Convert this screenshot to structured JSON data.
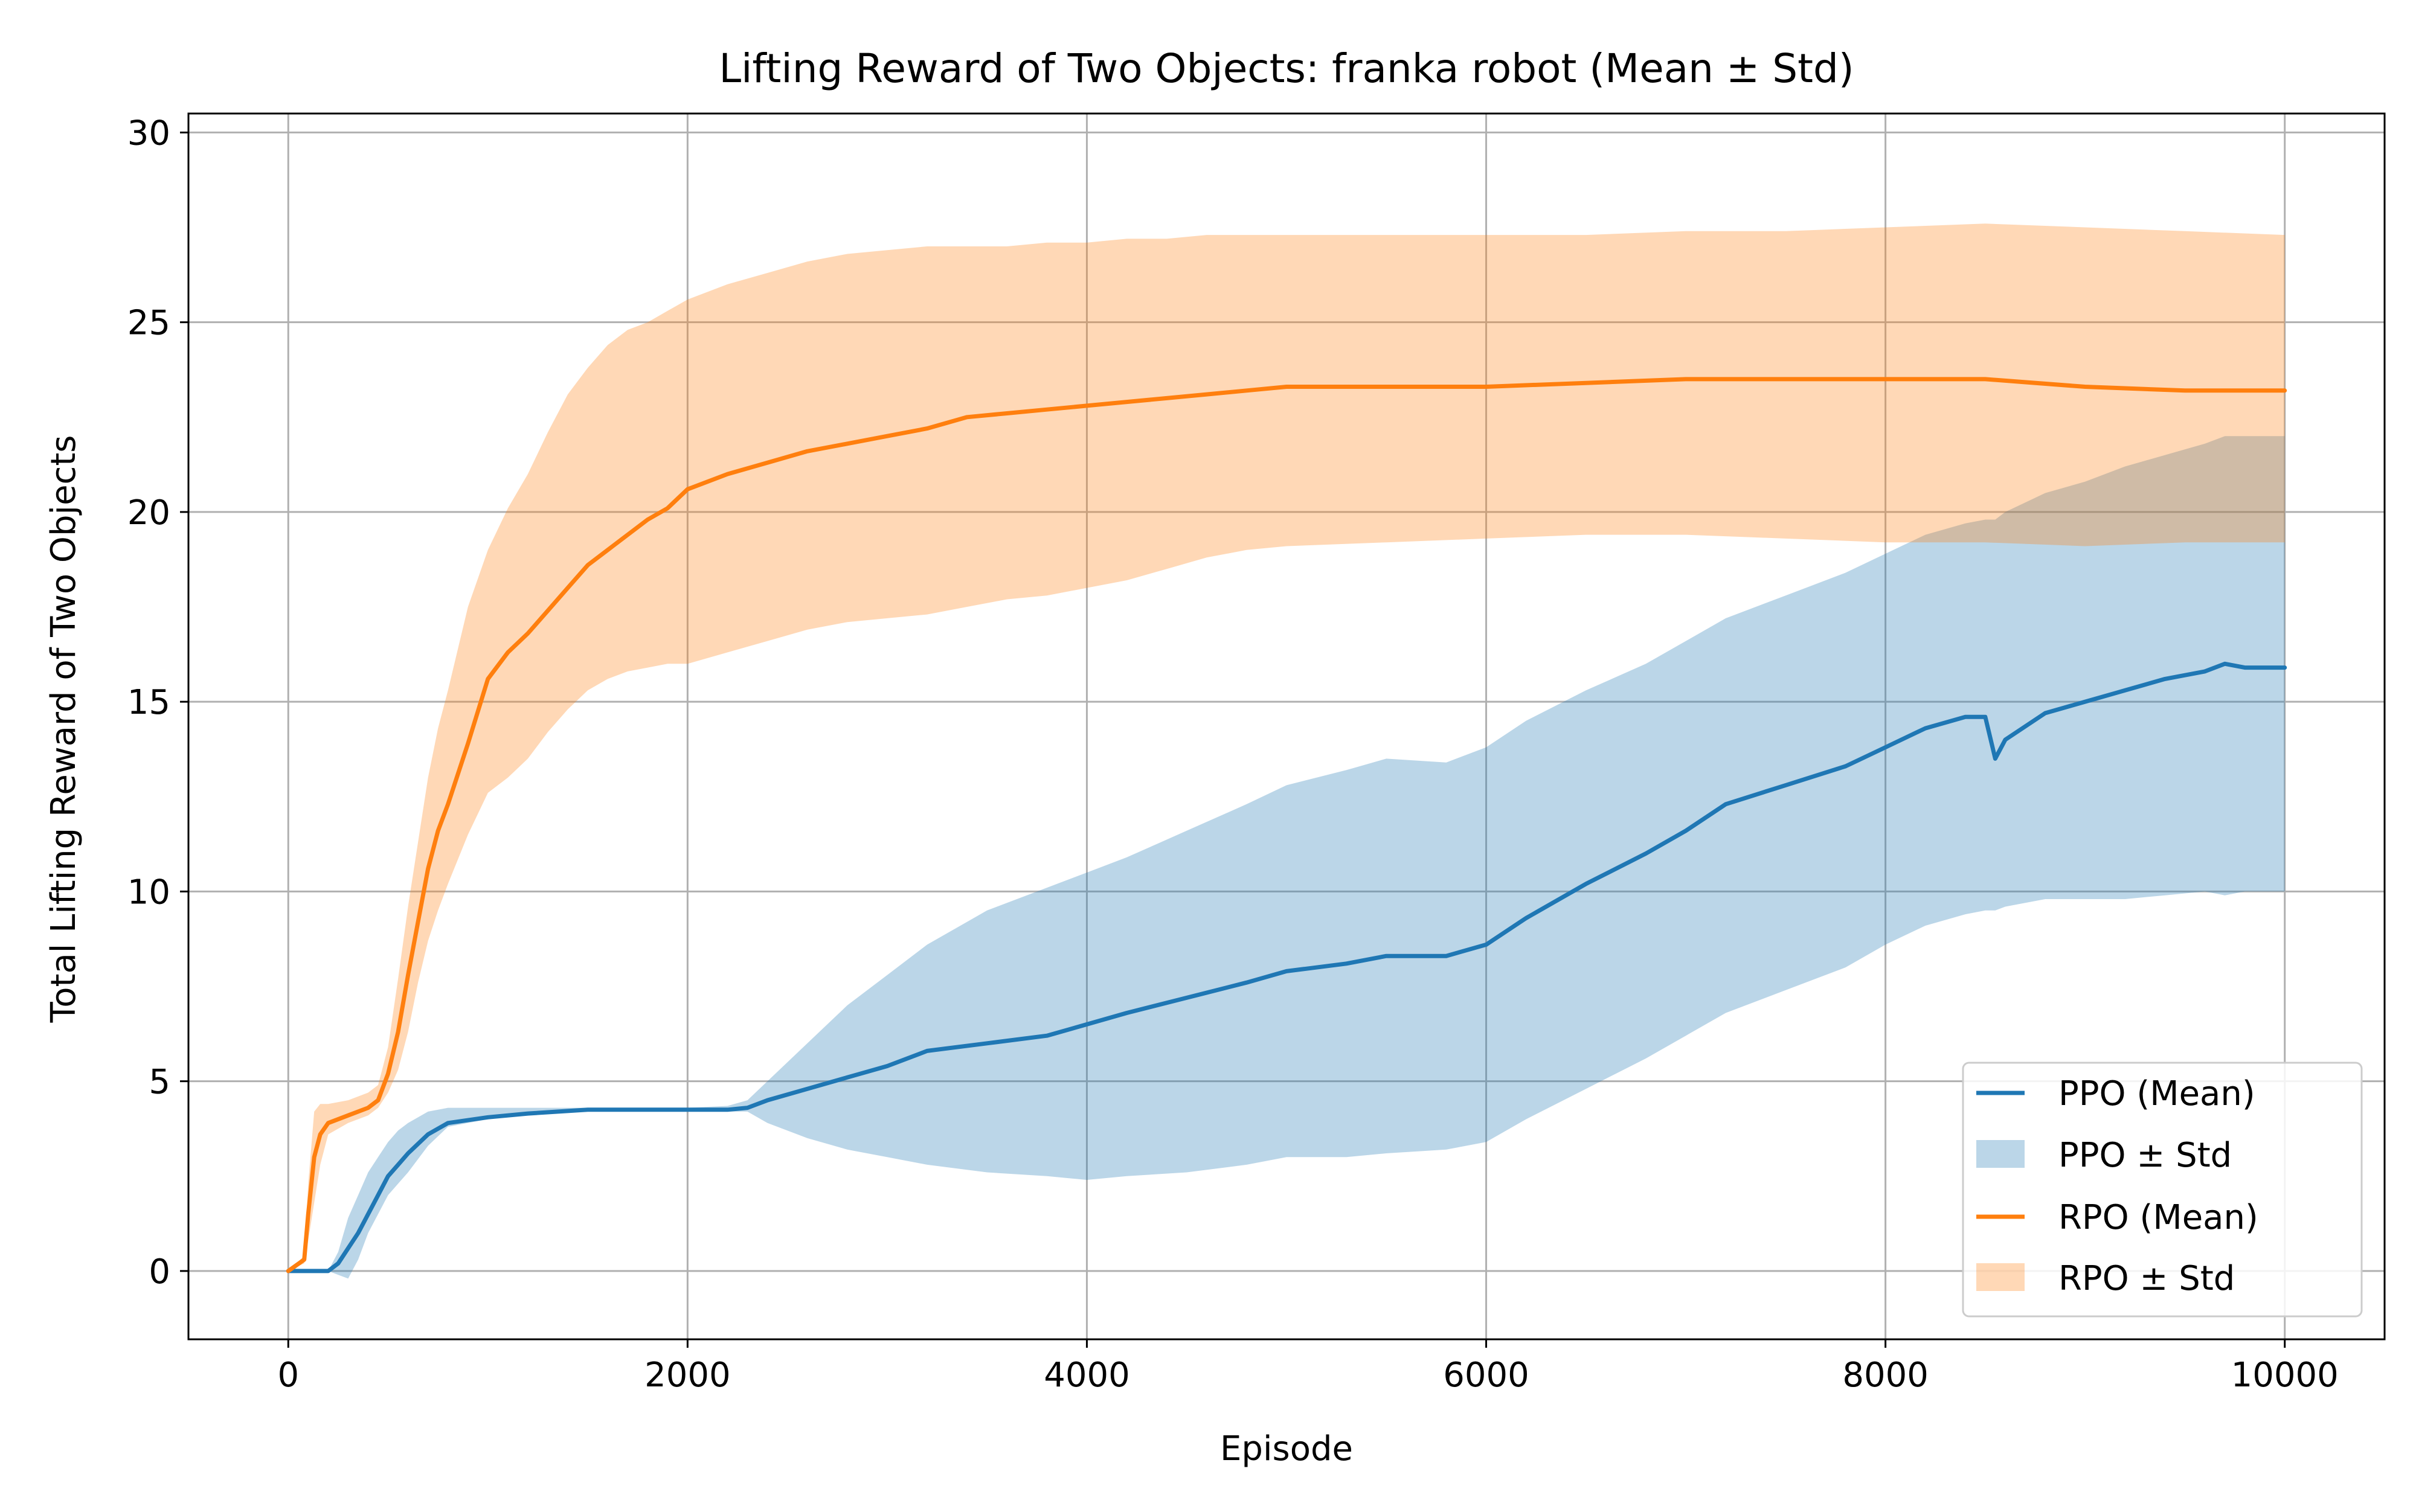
{
  "chart_data": {
    "type": "line",
    "title": "Lifting Reward of Two Objects: franka robot (Mean ± Std)",
    "xlabel": "Episode",
    "ylabel": "Total Lifting Reward of Two Objects",
    "xlim": [
      -500,
      10500
    ],
    "ylim": [
      -1.8,
      30.5
    ],
    "xticks": [
      0,
      2000,
      4000,
      6000,
      8000,
      10000
    ],
    "yticks": [
      0,
      5,
      10,
      15,
      20,
      25,
      30
    ],
    "grid": true,
    "legend_position": "lower-right",
    "series": [
      {
        "name": "PPO (Mean)",
        "band_name": "PPO ± Std",
        "color": "#1f77b4",
        "band_color": "#1f77b4",
        "x": [
          0,
          100,
          200,
          250,
          300,
          350,
          400,
          450,
          500,
          550,
          600,
          700,
          800,
          1000,
          1200,
          1500,
          1800,
          2000,
          2200,
          2300,
          2400,
          2600,
          2800,
          3000,
          3200,
          3500,
          3800,
          4000,
          4200,
          4500,
          4800,
          5000,
          5300,
          5500,
          5800,
          6000,
          6200,
          6500,
          6800,
          7000,
          7200,
          7500,
          7800,
          8000,
          8200,
          8400,
          8500,
          8550,
          8600,
          8800,
          9000,
          9200,
          9400,
          9600,
          9700,
          9800,
          10000
        ],
        "y": [
          0,
          0,
          0,
          0.2,
          0.6,
          1.0,
          1.5,
          2.0,
          2.5,
          2.8,
          3.1,
          3.6,
          3.9,
          4.05,
          4.15,
          4.25,
          4.25,
          4.25,
          4.25,
          4.3,
          4.5,
          4.8,
          5.1,
          5.4,
          5.8,
          6.0,
          6.2,
          6.5,
          6.8,
          7.2,
          7.6,
          7.9,
          8.1,
          8.3,
          8.3,
          8.6,
          9.3,
          10.2,
          11.0,
          11.6,
          12.3,
          12.8,
          13.3,
          13.8,
          14.3,
          14.6,
          14.6,
          13.5,
          14.0,
          14.7,
          15.0,
          15.3,
          15.6,
          15.8,
          16.0,
          15.9,
          15.9
        ],
        "y_lower": [
          0,
          0,
          0,
          -0.1,
          -0.2,
          0.3,
          1.0,
          1.5,
          2.0,
          2.3,
          2.6,
          3.3,
          3.8,
          4.0,
          4.1,
          4.2,
          4.2,
          4.2,
          4.2,
          4.2,
          3.9,
          3.5,
          3.2,
          3.0,
          2.8,
          2.6,
          2.5,
          2.4,
          2.5,
          2.6,
          2.8,
          3.0,
          3.0,
          3.1,
          3.2,
          3.4,
          4.0,
          4.8,
          5.6,
          6.2,
          6.8,
          7.4,
          8.0,
          8.6,
          9.1,
          9.4,
          9.5,
          9.5,
          9.6,
          9.8,
          9.8,
          9.8,
          9.9,
          10.0,
          9.9,
          10.0,
          10.0
        ],
        "y_upper": [
          0,
          0,
          0,
          0.5,
          1.4,
          2.0,
          2.6,
          3.0,
          3.4,
          3.7,
          3.9,
          4.2,
          4.3,
          4.3,
          4.3,
          4.3,
          4.3,
          4.3,
          4.35,
          4.5,
          5.0,
          6.0,
          7.0,
          7.8,
          8.6,
          9.5,
          10.1,
          10.5,
          10.9,
          11.6,
          12.3,
          12.8,
          13.2,
          13.5,
          13.4,
          13.8,
          14.5,
          15.3,
          16.0,
          16.6,
          17.2,
          17.8,
          18.4,
          18.9,
          19.4,
          19.7,
          19.8,
          19.8,
          20.0,
          20.5,
          20.8,
          21.2,
          21.5,
          21.8,
          22.0,
          22.0,
          22.0
        ]
      },
      {
        "name": "RPO (Mean)",
        "band_name": "RPO ± Std",
        "color": "#ff7f0e",
        "band_color": "#ff7f0e",
        "x": [
          0,
          80,
          100,
          130,
          160,
          200,
          300,
          400,
          450,
          500,
          550,
          600,
          650,
          700,
          750,
          800,
          900,
          1000,
          1100,
          1200,
          1300,
          1400,
          1500,
          1600,
          1700,
          1800,
          1900,
          2000,
          2200,
          2400,
          2600,
          2800,
          3000,
          3200,
          3400,
          3600,
          3800,
          4000,
          4200,
          4400,
          4600,
          4800,
          5000,
          5500,
          6000,
          6500,
          7000,
          7500,
          8000,
          8500,
          9000,
          9500,
          10000
        ],
        "y": [
          0,
          0.3,
          1.5,
          3.0,
          3.6,
          3.9,
          4.1,
          4.3,
          4.5,
          5.2,
          6.3,
          7.8,
          9.2,
          10.6,
          11.6,
          12.3,
          13.9,
          15.6,
          16.3,
          16.8,
          17.4,
          18.0,
          18.6,
          19.0,
          19.4,
          19.8,
          20.1,
          20.6,
          21.0,
          21.3,
          21.6,
          21.8,
          22.0,
          22.2,
          22.5,
          22.6,
          22.7,
          22.8,
          22.9,
          23.0,
          23.1,
          23.2,
          23.3,
          23.3,
          23.3,
          23.4,
          23.5,
          23.5,
          23.5,
          23.5,
          23.3,
          23.2,
          23.2
        ],
        "y_lower": [
          0,
          0.2,
          0.8,
          1.8,
          2.8,
          3.6,
          3.9,
          4.1,
          4.3,
          4.7,
          5.3,
          6.3,
          7.6,
          8.7,
          9.5,
          10.2,
          11.5,
          12.6,
          13.0,
          13.5,
          14.2,
          14.8,
          15.3,
          15.6,
          15.8,
          15.9,
          16.0,
          16.0,
          16.3,
          16.6,
          16.9,
          17.1,
          17.2,
          17.3,
          17.5,
          17.7,
          17.8,
          18.0,
          18.2,
          18.5,
          18.8,
          19.0,
          19.1,
          19.2,
          19.3,
          19.4,
          19.4,
          19.3,
          19.2,
          19.2,
          19.1,
          19.2,
          19.2
        ],
        "y_upper": [
          0,
          0.4,
          2.3,
          4.2,
          4.4,
          4.4,
          4.5,
          4.7,
          4.9,
          5.9,
          7.7,
          9.6,
          11.3,
          13.0,
          14.3,
          15.3,
          17.5,
          19.0,
          20.1,
          21.0,
          22.1,
          23.1,
          23.8,
          24.4,
          24.8,
          25.0,
          25.3,
          25.6,
          26.0,
          26.3,
          26.6,
          26.8,
          26.9,
          27.0,
          27.0,
          27.0,
          27.1,
          27.1,
          27.2,
          27.2,
          27.3,
          27.3,
          27.3,
          27.3,
          27.3,
          27.3,
          27.4,
          27.4,
          27.5,
          27.6,
          27.5,
          27.4,
          27.3
        ]
      }
    ]
  }
}
